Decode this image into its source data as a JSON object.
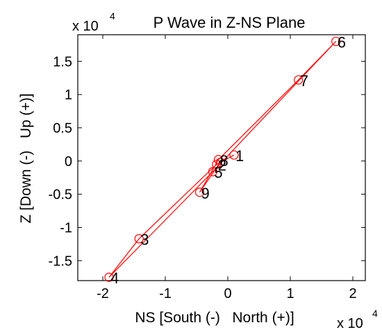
{
  "chart_data": {
    "type": "line",
    "title": "P Wave in Z-NS Plane",
    "xlabel": "NS [South (-)   North (+)]",
    "ylabel": "Z [Down (-)   Up (+)]",
    "x_exponent_label": "x 10",
    "x_exponent_power": "4",
    "y_exponent_label": "x 10",
    "y_exponent_power": "4",
    "xlim": [
      -2.4,
      2.2
    ],
    "ylim": [
      -1.8,
      1.9
    ],
    "xticks": [
      -2,
      -1,
      0,
      1,
      2
    ],
    "xtick_labels": [
      "-2",
      "-1",
      "0",
      "1",
      "2"
    ],
    "yticks": [
      -1.5,
      -1,
      -0.5,
      0,
      0.5,
      1,
      1.5
    ],
    "ytick_labels": [
      "-1.5",
      "-1",
      "-0.5",
      "0",
      "0.5",
      "1",
      "1.5"
    ],
    "grid": false,
    "line_color": "#ff0000",
    "series": [
      {
        "points": [
          {
            "label": "1",
            "x": 0.1,
            "y": 0.09
          },
          {
            "label": "2",
            "x": -0.18,
            "y": -0.05
          },
          {
            "label": "3",
            "x": -1.42,
            "y": -1.17
          },
          {
            "label": "4",
            "x": -1.9,
            "y": -1.75
          },
          {
            "label": "5",
            "x": -0.24,
            "y": -0.16
          },
          {
            "label": "6",
            "x": 1.73,
            "y": 1.8
          },
          {
            "label": "7",
            "x": 1.13,
            "y": 1.22
          },
          {
            "label": "8",
            "x": -0.15,
            "y": 0.02
          },
          {
            "label": "9",
            "x": -0.45,
            "y": -0.47
          },
          {
            "label": "",
            "x": -0.12,
            "y": -0.02
          }
        ]
      }
    ]
  }
}
